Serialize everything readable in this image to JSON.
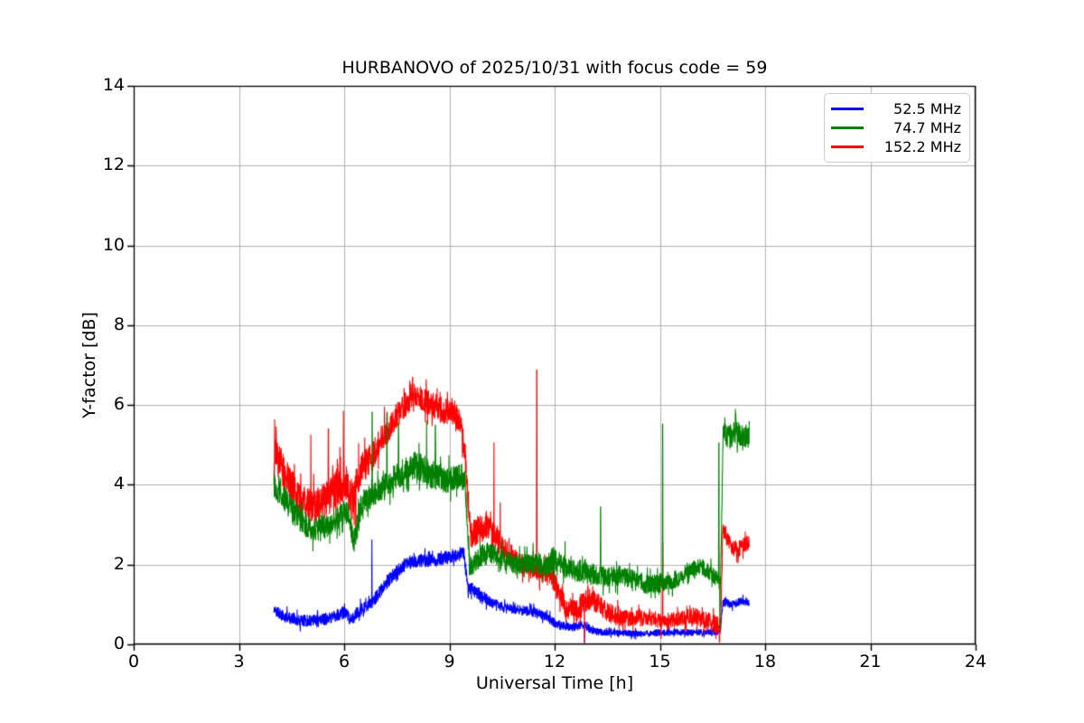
{
  "window": {
    "title": "HURBANOVO of 2025/10/31 with focus code = 59"
  },
  "chart_data": {
    "type": "line",
    "title": "HURBANOVO of 2025/10/31 with focus code = 59",
    "xlabel": "Universal Time [h]",
    "ylabel": "Y-factor [dB]",
    "xlim": [
      0,
      24
    ],
    "ylim": [
      0,
      14
    ],
    "xticks": [
      0,
      3,
      6,
      9,
      12,
      15,
      18,
      21,
      24
    ],
    "yticks": [
      0,
      2,
      4,
      6,
      8,
      10,
      12,
      14
    ],
    "grid": true,
    "grid_color": "#b0b0b0",
    "axis_color": "#000000",
    "background": "#ffffff",
    "legend": {
      "position": "upper right"
    },
    "series": [
      {
        "name": "52.5 MHz",
        "color": "#0000ff",
        "x_start": 4.0,
        "x_end": 17.55,
        "trend": [
          [
            4.0,
            0.85
          ],
          [
            4.3,
            0.7
          ],
          [
            4.7,
            0.6
          ],
          [
            5.3,
            0.6
          ],
          [
            5.7,
            0.7
          ],
          [
            6.0,
            0.8
          ],
          [
            6.2,
            0.62
          ],
          [
            6.45,
            0.85
          ],
          [
            6.75,
            1.0
          ],
          [
            7.0,
            1.3
          ],
          [
            7.4,
            1.75
          ],
          [
            7.8,
            2.05
          ],
          [
            8.2,
            2.1
          ],
          [
            8.6,
            2.1
          ],
          [
            9.0,
            2.2
          ],
          [
            9.42,
            2.3
          ],
          [
            9.52,
            1.45
          ],
          [
            9.8,
            1.3
          ],
          [
            10.2,
            1.05
          ],
          [
            10.6,
            0.92
          ],
          [
            11.1,
            0.85
          ],
          [
            11.6,
            0.78
          ],
          [
            11.9,
            0.6
          ],
          [
            12.15,
            0.48
          ],
          [
            12.5,
            0.42
          ],
          [
            12.8,
            0.5
          ],
          [
            13.1,
            0.33
          ],
          [
            13.5,
            0.3
          ],
          [
            14.5,
            0.27
          ],
          [
            15.5,
            0.3
          ],
          [
            16.3,
            0.3
          ],
          [
            16.72,
            0.3
          ],
          [
            16.8,
            1.05
          ],
          [
            17.1,
            1.0
          ],
          [
            17.35,
            1.1
          ],
          [
            17.55,
            1.02
          ]
        ],
        "noise": [
          [
            4.0,
            0.14
          ],
          [
            7.0,
            0.16
          ],
          [
            9.4,
            0.17
          ],
          [
            10.5,
            0.12
          ],
          [
            12.0,
            0.12
          ],
          [
            13.5,
            0.08
          ],
          [
            16.6,
            0.07
          ],
          [
            16.85,
            0.1
          ],
          [
            17.55,
            0.09
          ]
        ],
        "spikes": [
          [
            6.79,
            2.62
          ],
          [
            12.85,
            0.04
          ]
        ]
      },
      {
        "name": "74.7 MHz",
        "color": "#008000",
        "x_start": 4.0,
        "x_end": 17.55,
        "trend": [
          [
            4.0,
            4.05
          ],
          [
            4.35,
            3.55
          ],
          [
            4.75,
            3.1
          ],
          [
            5.1,
            2.9
          ],
          [
            5.5,
            2.95
          ],
          [
            5.85,
            3.2
          ],
          [
            6.1,
            3.35
          ],
          [
            6.27,
            2.55
          ],
          [
            6.5,
            3.55
          ],
          [
            6.9,
            3.8
          ],
          [
            7.3,
            4.1
          ],
          [
            7.7,
            4.35
          ],
          [
            8.05,
            4.5
          ],
          [
            8.45,
            4.3
          ],
          [
            8.85,
            4.1
          ],
          [
            9.2,
            4.2
          ],
          [
            9.45,
            4.05
          ],
          [
            9.58,
            1.95
          ],
          [
            9.8,
            2.15
          ],
          [
            10.1,
            2.3
          ],
          [
            10.5,
            2.15
          ],
          [
            10.9,
            2.0
          ],
          [
            11.3,
            2.05
          ],
          [
            11.7,
            1.95
          ],
          [
            12.0,
            2.15
          ],
          [
            12.35,
            1.95
          ],
          [
            12.7,
            1.85
          ],
          [
            13.1,
            1.75
          ],
          [
            13.5,
            1.68
          ],
          [
            13.9,
            1.72
          ],
          [
            14.3,
            1.6
          ],
          [
            14.7,
            1.5
          ],
          [
            15.1,
            1.55
          ],
          [
            15.5,
            1.65
          ],
          [
            15.9,
            1.9
          ],
          [
            16.15,
            1.95
          ],
          [
            16.45,
            1.8
          ],
          [
            16.65,
            1.6
          ],
          [
            16.73,
            1.6
          ],
          [
            16.8,
            5.3
          ],
          [
            17.0,
            5.2
          ],
          [
            17.2,
            5.35
          ],
          [
            17.4,
            5.15
          ],
          [
            17.55,
            5.3
          ]
        ],
        "noise": [
          [
            4.0,
            0.35
          ],
          [
            5.5,
            0.3
          ],
          [
            7.0,
            0.32
          ],
          [
            8.5,
            0.35
          ],
          [
            9.5,
            0.28
          ],
          [
            11.0,
            0.25
          ],
          [
            12.2,
            0.32
          ],
          [
            13.5,
            0.25
          ],
          [
            15.0,
            0.25
          ],
          [
            16.6,
            0.2
          ],
          [
            16.85,
            0.32
          ],
          [
            17.55,
            0.3
          ]
        ],
        "spikes": [
          [
            6.8,
            5.82
          ],
          [
            7.22,
            5.8
          ],
          [
            7.55,
            5.55
          ],
          [
            8.35,
            5.6
          ],
          [
            8.6,
            5.5
          ],
          [
            13.31,
            3.45
          ],
          [
            15.08,
            5.52
          ],
          [
            16.68,
            5.05
          ],
          [
            16.71,
            0.4
          ]
        ]
      },
      {
        "name": "152.2 MHz",
        "color": "#ff0000",
        "x_start": 4.0,
        "x_end": 17.55,
        "trend": [
          [
            4.0,
            4.9
          ],
          [
            4.3,
            4.3
          ],
          [
            4.7,
            3.6
          ],
          [
            5.0,
            3.45
          ],
          [
            5.4,
            3.55
          ],
          [
            5.8,
            3.95
          ],
          [
            6.05,
            4.15
          ],
          [
            6.22,
            3.5
          ],
          [
            6.45,
            4.35
          ],
          [
            6.75,
            4.65
          ],
          [
            7.05,
            5.1
          ],
          [
            7.45,
            5.65
          ],
          [
            7.75,
            6.05
          ],
          [
            8.0,
            6.25
          ],
          [
            8.35,
            6.1
          ],
          [
            8.7,
            5.9
          ],
          [
            9.1,
            5.85
          ],
          [
            9.32,
            5.6
          ],
          [
            9.47,
            4.5
          ],
          [
            9.6,
            2.75
          ],
          [
            9.85,
            2.85
          ],
          [
            10.05,
            3.0
          ],
          [
            10.35,
            2.6
          ],
          [
            10.65,
            2.3
          ],
          [
            11.0,
            2.05
          ],
          [
            11.4,
            1.9
          ],
          [
            11.8,
            1.75
          ],
          [
            12.05,
            1.5
          ],
          [
            12.3,
            0.95
          ],
          [
            12.6,
            0.8
          ],
          [
            12.9,
            1.1
          ],
          [
            13.05,
            1.2
          ],
          [
            13.35,
            0.9
          ],
          [
            13.65,
            0.75
          ],
          [
            14.0,
            0.65
          ],
          [
            14.5,
            0.65
          ],
          [
            15.0,
            0.6
          ],
          [
            15.5,
            0.62
          ],
          [
            16.0,
            0.72
          ],
          [
            16.35,
            0.6
          ],
          [
            16.6,
            0.5
          ],
          [
            16.73,
            0.45
          ],
          [
            16.8,
            2.9
          ],
          [
            16.95,
            2.6
          ],
          [
            17.1,
            2.4
          ],
          [
            17.3,
            2.4
          ],
          [
            17.45,
            2.6
          ],
          [
            17.55,
            2.5
          ]
        ],
        "noise": [
          [
            4.0,
            0.5
          ],
          [
            5.0,
            0.45
          ],
          [
            6.0,
            0.5
          ],
          [
            7.0,
            0.35
          ],
          [
            8.0,
            0.3
          ],
          [
            9.3,
            0.35
          ],
          [
            10.0,
            0.35
          ],
          [
            11.0,
            0.28
          ],
          [
            12.0,
            0.28
          ],
          [
            13.0,
            0.3
          ],
          [
            14.0,
            0.2
          ],
          [
            15.0,
            0.18
          ],
          [
            16.0,
            0.2
          ],
          [
            16.6,
            0.22
          ],
          [
            16.85,
            0.22
          ],
          [
            17.55,
            0.18
          ]
        ],
        "spikes": [
          [
            4.06,
            5.45
          ],
          [
            5.05,
            5.25
          ],
          [
            5.55,
            5.4
          ],
          [
            5.98,
            5.85
          ],
          [
            6.33,
            2.6
          ],
          [
            7.15,
            5.95
          ],
          [
            7.95,
            6.7
          ],
          [
            10.27,
            5.05
          ],
          [
            10.45,
            3.55
          ],
          [
            11.49,
            6.88
          ],
          [
            12.85,
            0.05
          ],
          [
            15.03,
            0.15
          ],
          [
            15.08,
            2.55
          ],
          [
            16.7,
            0.05
          ]
        ]
      }
    ]
  }
}
